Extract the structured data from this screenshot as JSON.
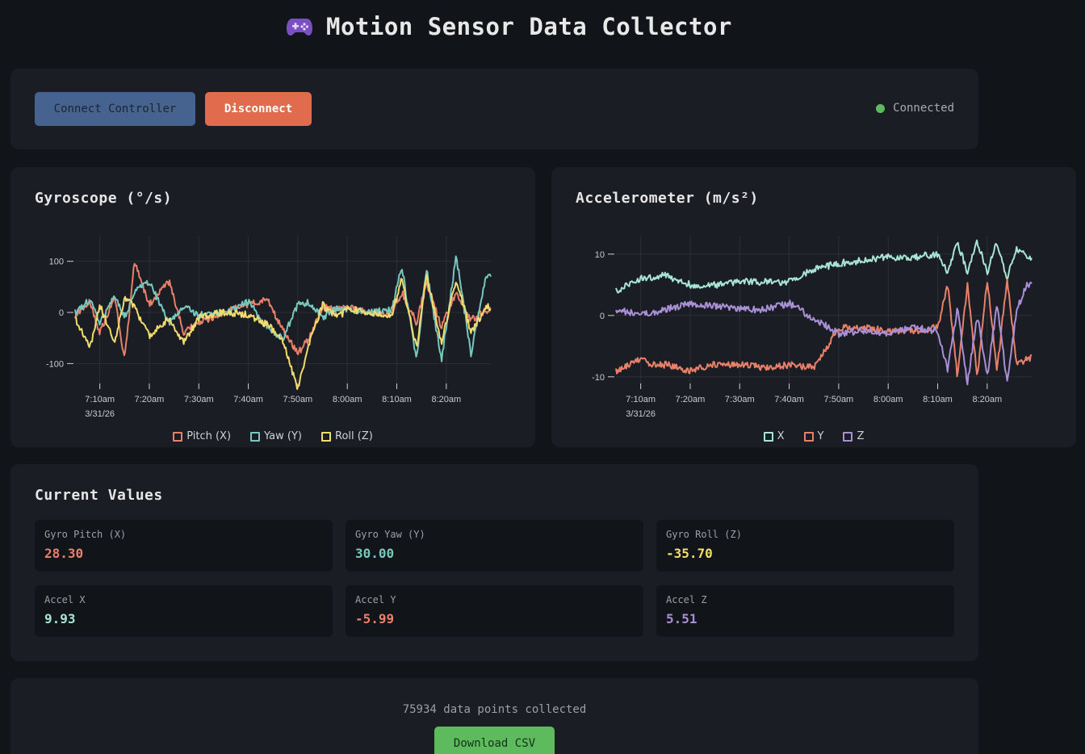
{
  "header": {
    "title": "Motion Sensor Data Collector",
    "icon": "gamepad-icon"
  },
  "controls": {
    "connect_label": "Connect Controller",
    "disconnect_label": "Disconnect",
    "status_text": "Connected",
    "status_color": "#5dbb5d"
  },
  "chart_data": [
    {
      "type": "line",
      "title": "Gyroscope (°/s)",
      "ylim": [
        -150,
        150
      ],
      "yticks": [
        100,
        0,
        -100
      ],
      "xticks": [
        "7:10am",
        "7:20am",
        "7:30am",
        "7:40am",
        "7:50am",
        "8:00am",
        "8:10am",
        "8:20am"
      ],
      "xtick_date": "3/31/26",
      "x_range": [
        "2026-03-31 07:05",
        "2026-03-31 08:29"
      ],
      "grid": true,
      "legend": "bottom",
      "series": [
        {
          "name": "Pitch (X)",
          "color": "#e8806a",
          "times": [
            "07:05",
            "07:08",
            "07:10",
            "07:13",
            "07:15",
            "07:17",
            "07:20",
            "07:24",
            "07:27",
            "07:30",
            "07:35",
            "07:40",
            "07:44",
            "07:47",
            "07:50",
            "07:52",
            "07:55",
            "07:58",
            "08:00",
            "08:05",
            "08:09",
            "08:11",
            "08:14",
            "08:16",
            "08:19",
            "08:22",
            "08:25",
            "08:28"
          ],
          "values": [
            -5,
            20,
            -40,
            30,
            -95,
            100,
            15,
            60,
            -40,
            -20,
            0,
            15,
            25,
            -35,
            -80,
            -55,
            10,
            5,
            10,
            0,
            -5,
            40,
            -20,
            60,
            -30,
            40,
            -15,
            5
          ]
        },
        {
          "name": "Yaw (Y)",
          "color": "#77c8bd",
          "times": [
            "07:05",
            "07:08",
            "07:10",
            "07:13",
            "07:15",
            "07:17",
            "07:20",
            "07:24",
            "07:27",
            "07:30",
            "07:35",
            "07:40",
            "07:44",
            "07:47",
            "07:50",
            "07:52",
            "07:55",
            "07:58",
            "08:00",
            "08:05",
            "08:09",
            "08:11",
            "08:14",
            "08:16",
            "08:19",
            "08:22",
            "08:25",
            "08:28"
          ],
          "values": [
            0,
            25,
            -20,
            30,
            -10,
            40,
            60,
            -20,
            10,
            -5,
            0,
            20,
            -30,
            -50,
            15,
            20,
            -10,
            10,
            5,
            0,
            5,
            90,
            -95,
            85,
            -95,
            110,
            -80,
            70
          ]
        },
        {
          "name": "Roll (Z)",
          "color": "#f2dc6d",
          "times": [
            "07:05",
            "07:08",
            "07:10",
            "07:13",
            "07:15",
            "07:17",
            "07:20",
            "07:24",
            "07:27",
            "07:30",
            "07:35",
            "07:40",
            "07:44",
            "07:47",
            "07:50",
            "07:52",
            "07:55",
            "07:58",
            "08:00",
            "08:05",
            "08:09",
            "08:11",
            "08:14",
            "08:16",
            "08:19",
            "08:22",
            "08:25",
            "08:28"
          ],
          "values": [
            -10,
            -70,
            15,
            -60,
            30,
            10,
            -45,
            -10,
            -60,
            -10,
            0,
            -5,
            -25,
            -55,
            -150,
            -70,
            15,
            -10,
            5,
            0,
            -5,
            65,
            -70,
            75,
            -60,
            65,
            -40,
            10
          ]
        }
      ]
    },
    {
      "type": "line",
      "title": "Accelerometer (m/s²)",
      "ylim": [
        -12,
        13
      ],
      "yticks": [
        10,
        0,
        -10
      ],
      "xticks": [
        "7:10am",
        "7:20am",
        "7:30am",
        "7:40am",
        "7:50am",
        "8:00am",
        "8:10am",
        "8:20am"
      ],
      "xtick_date": "3/31/26",
      "x_range": [
        "2026-03-31 07:05",
        "2026-03-31 08:29"
      ],
      "grid": true,
      "legend": "bottom",
      "series": [
        {
          "name": "X",
          "color": "#a8e4d4",
          "times": [
            "07:05",
            "07:10",
            "07:15",
            "07:20",
            "07:25",
            "07:30",
            "07:35",
            "07:40",
            "07:45",
            "07:50",
            "07:55",
            "08:00",
            "08:05",
            "08:10",
            "08:12",
            "08:14",
            "08:16",
            "08:18",
            "08:20",
            "08:22",
            "08:24",
            "08:26",
            "08:28"
          ],
          "values": [
            4,
            6,
            6.5,
            5,
            5,
            5.5,
            5.5,
            5.5,
            7.5,
            8.5,
            9,
            9.5,
            9.5,
            10,
            7,
            12,
            7,
            12,
            7,
            12,
            6,
            11,
            9.5
          ]
        },
        {
          "name": "Y",
          "color": "#e8806a",
          "times": [
            "07:05",
            "07:10",
            "07:12",
            "07:15",
            "07:20",
            "07:25",
            "07:30",
            "07:35",
            "07:40",
            "07:45",
            "07:50",
            "07:55",
            "08:00",
            "08:05",
            "08:10",
            "08:12",
            "08:14",
            "08:16",
            "08:18",
            "08:20",
            "08:22",
            "08:24",
            "08:26",
            "08:28"
          ],
          "values": [
            -9,
            -7,
            -8,
            -8,
            -9,
            -8,
            -8,
            -8.5,
            -8,
            -8.5,
            -2,
            -2,
            -2.5,
            -2.5,
            -2,
            5,
            -10,
            5,
            -10,
            6,
            -9,
            6,
            -8,
            -7
          ]
        },
        {
          "name": "Z",
          "color": "#a990d6",
          "times": [
            "07:05",
            "07:10",
            "07:15",
            "07:20",
            "07:25",
            "07:30",
            "07:35",
            "07:40",
            "07:45",
            "07:50",
            "07:55",
            "08:00",
            "08:05",
            "08:10",
            "08:12",
            "08:14",
            "08:16",
            "08:18",
            "08:20",
            "08:22",
            "08:24",
            "08:26",
            "08:28"
          ],
          "values": [
            1,
            0,
            1,
            2,
            1.5,
            1,
            1,
            2,
            -0.5,
            -3,
            -2.5,
            -3,
            -2,
            -2.5,
            -9,
            1,
            -11,
            0,
            -10,
            2,
            -11,
            1,
            5
          ]
        }
      ]
    }
  ],
  "current_values": {
    "title": "Current Values",
    "items": [
      {
        "label": "Gyro Pitch (X)",
        "value": "28.30",
        "color": "#e8806a"
      },
      {
        "label": "Gyro Yaw (Y)",
        "value": "30.00",
        "color": "#77c8bd"
      },
      {
        "label": "Gyro Roll (Z)",
        "value": "-35.70",
        "color": "#f2dc6d"
      },
      {
        "label": "Accel X",
        "value": "9.93",
        "color": "#a8e4d4"
      },
      {
        "label": "Accel Y",
        "value": "-5.99",
        "color": "#e8806a"
      },
      {
        "label": "Accel Z",
        "value": "5.51",
        "color": "#a990d6"
      }
    ]
  },
  "footer": {
    "count_text": "75934 data points collected",
    "download_label": "Download CSV"
  }
}
